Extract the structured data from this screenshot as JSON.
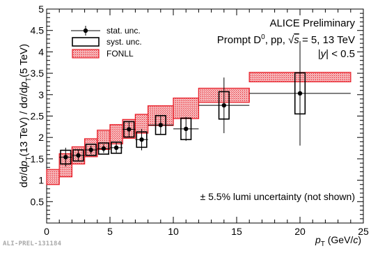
{
  "figure_id": "ALI-PREL-131184",
  "chart_data": {
    "type": "scatter",
    "experiment": "ALICE Preliminary",
    "process_line": "Prompt D⁰, pp, √s = 5, 13 TeV",
    "rapidity_cut": "|y| < 0.5",
    "lumi_note": "± 5.5% lumi uncertainty (not shown)",
    "xlabel": "pT (GeV/c)",
    "ylabel": "dσ/dpT(13 TeV) / dσ/dpT(5 TeV)",
    "xlim": [
      0,
      25
    ],
    "ylim": [
      0,
      5
    ],
    "x_ticks": [
      "0",
      "5",
      "10",
      "15",
      "20",
      "25"
    ],
    "y_ticks": [
      "0.5",
      "1",
      "1.5",
      "2",
      "2.5",
      "3",
      "3.5",
      "4",
      "4.5",
      "5"
    ],
    "legend": {
      "placement": "top-left",
      "entries": [
        "stat. unc.",
        "syst. unc.",
        "FONLL"
      ]
    },
    "colors": {
      "data": "#000000",
      "fonll_edge": "#e8202a",
      "fonll_fill": "#f6b8bb"
    },
    "series": [
      {
        "name": "stat. unc.",
        "bins": [
          [
            1,
            2
          ],
          [
            2,
            3
          ],
          [
            3,
            4
          ],
          [
            4,
            5
          ],
          [
            5,
            6
          ],
          [
            6,
            7
          ],
          [
            7,
            8
          ],
          [
            8,
            10
          ],
          [
            10,
            12
          ],
          [
            12,
            16
          ],
          [
            16,
            24
          ]
        ],
        "x": [
          1.5,
          2.5,
          3.5,
          4.5,
          5.5,
          6.5,
          7.5,
          9,
          11,
          14,
          20
        ],
        "y": [
          1.54,
          1.58,
          1.71,
          1.74,
          1.76,
          2.19,
          1.95,
          2.29,
          2.2,
          2.75,
          3.03
        ],
        "stat_err": [
          0.22,
          0.12,
          0.1,
          0.1,
          0.12,
          0.18,
          0.25,
          0.22,
          0.28,
          0.65,
          1.22
        ],
        "syst_err": [
          0.16,
          0.13,
          0.13,
          0.13,
          0.13,
          0.18,
          0.18,
          0.22,
          0.25,
          0.32,
          0.48
        ]
      },
      {
        "name": "FONLL",
        "bins": [
          [
            0,
            1
          ],
          [
            1,
            2
          ],
          [
            2,
            3
          ],
          [
            3,
            4
          ],
          [
            4,
            5
          ],
          [
            5,
            6
          ],
          [
            6,
            7
          ],
          [
            7,
            8
          ],
          [
            8,
            10
          ],
          [
            10,
            12
          ],
          [
            12,
            16
          ],
          [
            16,
            24
          ]
        ],
        "low": [
          0.9,
          1.08,
          1.38,
          1.55,
          1.72,
          1.85,
          1.98,
          2.1,
          2.28,
          2.44,
          2.82,
          3.3
        ],
        "high": [
          1.25,
          1.62,
          1.78,
          1.97,
          2.17,
          2.3,
          2.42,
          2.54,
          2.74,
          2.92,
          3.15,
          3.52
        ]
      }
    ]
  }
}
